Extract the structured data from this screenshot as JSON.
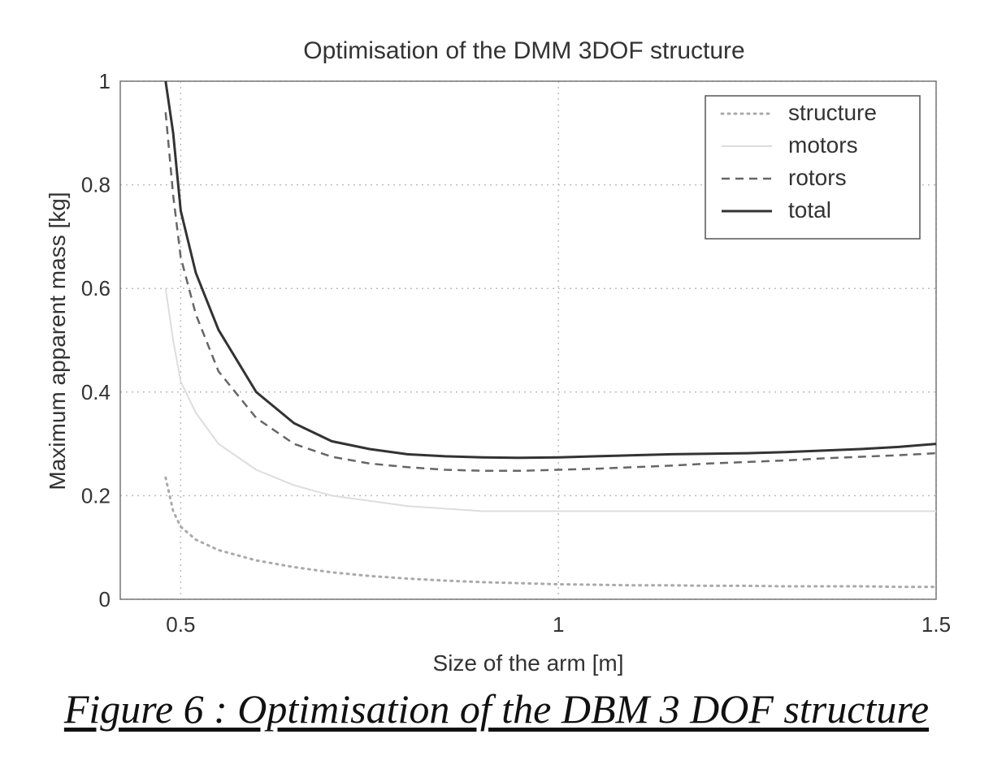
{
  "caption": "Figure 6 : Optimisation of the DBM 3 DOF structure",
  "chart_data": {
    "type": "line",
    "title": "Optimisation of the DMM 3DOF structure",
    "xlabel": "Size of the arm [m]",
    "ylabel": "Maximum apparent mass [kg]",
    "xlim": [
      0.42,
      1.5
    ],
    "ylim": [
      0,
      1
    ],
    "xticks": [
      0.5,
      1,
      1.5
    ],
    "xtick_labels": [
      "0.5",
      "1",
      "1.5"
    ],
    "yticks": [
      0,
      0.2,
      0.4,
      0.6,
      0.8,
      1
    ],
    "ytick_labels": [
      "0",
      "0.2",
      "0.4",
      "0.6",
      "0.8",
      "1"
    ],
    "grid": true,
    "legend_position": "top-right",
    "x": [
      0.48,
      0.49,
      0.5,
      0.52,
      0.55,
      0.6,
      0.65,
      0.7,
      0.75,
      0.8,
      0.85,
      0.9,
      0.95,
      1.0,
      1.05,
      1.1,
      1.15,
      1.2,
      1.25,
      1.3,
      1.35,
      1.4,
      1.45,
      1.5
    ],
    "series": [
      {
        "name": "structure",
        "style": "dotted",
        "color": "#aaaaaa",
        "values": [
          0.235,
          0.17,
          0.14,
          0.115,
          0.095,
          0.075,
          0.062,
          0.052,
          0.045,
          0.04,
          0.036,
          0.033,
          0.031,
          0.029,
          0.028,
          0.027,
          0.027,
          0.026,
          0.026,
          0.025,
          0.025,
          0.025,
          0.024,
          0.024
        ]
      },
      {
        "name": "motors",
        "style": "solid-light",
        "color": "#dddddd",
        "values": [
          0.6,
          0.5,
          0.42,
          0.36,
          0.3,
          0.25,
          0.22,
          0.2,
          0.19,
          0.18,
          0.175,
          0.17,
          0.17,
          0.17,
          0.17,
          0.17,
          0.17,
          0.17,
          0.17,
          0.17,
          0.17,
          0.17,
          0.17,
          0.17
        ]
      },
      {
        "name": "rotors",
        "style": "dashed",
        "color": "#666666",
        "values": [
          0.94,
          0.78,
          0.66,
          0.55,
          0.44,
          0.35,
          0.3,
          0.275,
          0.262,
          0.255,
          0.25,
          0.248,
          0.248,
          0.25,
          0.252,
          0.255,
          0.258,
          0.262,
          0.265,
          0.268,
          0.272,
          0.275,
          0.278,
          0.282
        ]
      },
      {
        "name": "total",
        "style": "solid",
        "color": "#333333",
        "values": [
          1.0,
          0.9,
          0.75,
          0.63,
          0.52,
          0.4,
          0.34,
          0.305,
          0.29,
          0.28,
          0.276,
          0.274,
          0.273,
          0.274,
          0.276,
          0.278,
          0.28,
          0.281,
          0.282,
          0.284,
          0.287,
          0.29,
          0.294,
          0.3
        ]
      }
    ]
  }
}
